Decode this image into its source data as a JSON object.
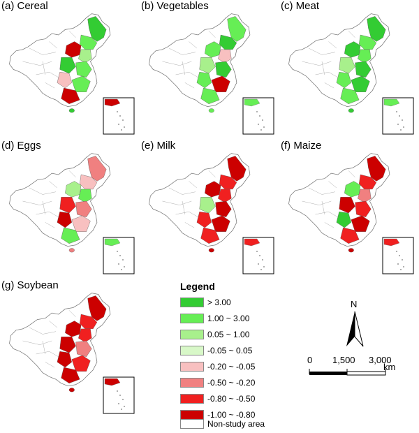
{
  "panels": [
    {
      "id": "cereal",
      "title": "(a) Cereal",
      "pattern": [
        "g1",
        "g2",
        "r4",
        "g3",
        "g1",
        "g2",
        "p1",
        "g2",
        "r4"
      ]
    },
    {
      "id": "vegetables",
      "title": "(b) Vegetables",
      "pattern": [
        "g2",
        "g1",
        "g2",
        "p1",
        "g3",
        "g1",
        "g2",
        "r4",
        "g2"
      ]
    },
    {
      "id": "meat",
      "title": "(c) Meat",
      "pattern": [
        "g1",
        "g2",
        "g1",
        "g2",
        "g3",
        "g1",
        "g2",
        "g1",
        "g2"
      ]
    },
    {
      "id": "eggs",
      "title": "(d) Eggs",
      "pattern": [
        "p2",
        "p1",
        "g3",
        "g2",
        "r3",
        "p2",
        "r4",
        "p1",
        "g2"
      ]
    },
    {
      "id": "milk",
      "title": "(e) Milk",
      "pattern": [
        "r4",
        "r3",
        "r4",
        "r3",
        "g3",
        "r4",
        "r3",
        "r4",
        "r3"
      ]
    },
    {
      "id": "maize",
      "title": "(f) Maize",
      "pattern": [
        "r4",
        "r3",
        "g2",
        "p2",
        "r4",
        "r3",
        "g1",
        "r4",
        "r3"
      ]
    },
    {
      "id": "soybean",
      "title": "(g) Soybean",
      "pattern": [
        "r4",
        "r3",
        "r4",
        "r3",
        "r4",
        "p2",
        "r4",
        "r3",
        "r4"
      ]
    }
  ],
  "legend": {
    "title": "Legend",
    "items": [
      {
        "label": "> 3.00",
        "color": "#33cc33"
      },
      {
        "label": "1.00 ~ 3.00",
        "color": "#66ee55"
      },
      {
        "label": "0.05 ~ 1.00",
        "color": "#a8f08c"
      },
      {
        "label": "-0.05 ~ 0.05",
        "color": "#d8f8c8"
      },
      {
        "label": "-0.20 ~ -0.05",
        "color": "#f8c0c0"
      },
      {
        "label": "-0.50 ~ -0.20",
        "color": "#f08080"
      },
      {
        "label": "-0.80 ~ -0.50",
        "color": "#f02020"
      },
      {
        "label": "-1.00 ~ -0.80",
        "color": "#cc0000"
      },
      {
        "label": "Non-study area",
        "color": "#ffffff"
      }
    ]
  },
  "palette": {
    "g1": "#33cc33",
    "g2": "#66ee55",
    "g3": "#a8f08c",
    "g4": "#d8f8c8",
    "p1": "#f8c0c0",
    "p2": "#f08080",
    "r3": "#f02020",
    "r4": "#cc0000"
  },
  "north_arrow": {
    "label": "N"
  },
  "scale_bar": {
    "ticks": [
      "0",
      "1,500",
      "3,000"
    ],
    "unit": "km"
  }
}
